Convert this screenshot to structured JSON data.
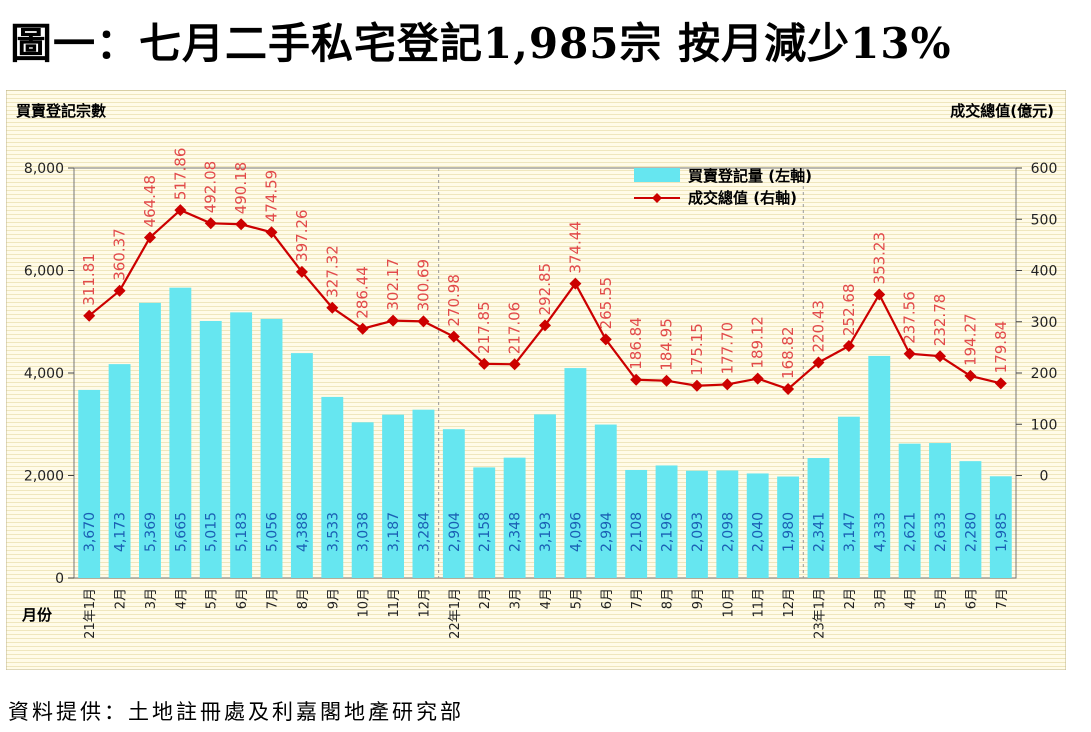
{
  "title": "圖一：七月二手私宅登記1,985宗  按月減少13%",
  "source": "資料提供：土地註冊處及利嘉閣地產研究部",
  "colors": {
    "bar": "#66e6f0",
    "line": "#cc0000",
    "bar_label": "#1a5fb4",
    "value_label": "#e24a4a",
    "grid": "#d6c79a",
    "bg": "#fffbe6"
  },
  "chart_data": {
    "type": "bar+line",
    "y_left_title": "買賣登記宗數",
    "y_right_title": "成交總值(億元)",
    "x_axis_title": "月份",
    "left_axis": {
      "range": [
        0,
        8000
      ],
      "ticks": [
        "0",
        "2,000",
        "4,000",
        "6,000",
        "8,000"
      ],
      "tick_values": [
        0,
        2000,
        4000,
        6000,
        8000
      ]
    },
    "right_axis": {
      "range": [
        -200,
        600
      ],
      "ticks": [
        "0",
        "100",
        "200",
        "300",
        "400",
        "500",
        "600"
      ],
      "tick_values": [
        0,
        100,
        200,
        300,
        400,
        500,
        600
      ]
    },
    "categories": [
      "21年1月",
      "2月",
      "3月",
      "4月",
      "5月",
      "6月",
      "7月",
      "8月",
      "9月",
      "10月",
      "11月",
      "12月",
      "22年1月",
      "2月",
      "3月",
      "4月",
      "5月",
      "6月",
      "7月",
      "8月",
      "9月",
      "10月",
      "11月",
      "12月",
      "23年1月",
      "2月",
      "3月",
      "4月",
      "5月",
      "6月",
      "7月"
    ],
    "series": [
      {
        "name": "買賣登記量 (左軸)",
        "type": "bar",
        "values": [
          3670,
          4173,
          5369,
          5665,
          5015,
          5183,
          5056,
          4388,
          3533,
          3038,
          3187,
          3284,
          2904,
          2158,
          2348,
          3193,
          4096,
          2994,
          2108,
          2196,
          2093,
          2098,
          2040,
          1980,
          2341,
          3147,
          4333,
          2621,
          2633,
          2280,
          1985
        ],
        "labels": [
          "3,670",
          "4,173",
          "5,369",
          "5,665",
          "5,015",
          "5,183",
          "5,056",
          "4,388",
          "3,533",
          "3,038",
          "3,187",
          "3,284",
          "2,904",
          "2,158",
          "2,348",
          "3,193",
          "4,096",
          "2,994",
          "2,108",
          "2,196",
          "2,093",
          "2,098",
          "2,040",
          "1,980",
          "2,341",
          "3,147",
          "4,333",
          "2,621",
          "2,633",
          "2,280",
          "1,985"
        ]
      },
      {
        "name": "成交總值 (右軸)",
        "type": "line",
        "values": [
          311.81,
          360.37,
          464.48,
          517.86,
          492.08,
          490.18,
          474.59,
          397.26,
          327.32,
          286.44,
          302.17,
          300.69,
          270.98,
          217.85,
          217.06,
          292.85,
          374.44,
          265.55,
          186.84,
          184.95,
          175.15,
          177.7,
          189.12,
          168.82,
          220.43,
          252.68,
          353.23,
          237.56,
          232.78,
          194.27,
          179.84
        ],
        "labels": [
          "311.81",
          "360.37",
          "464.48",
          "517.86",
          "492.08",
          "490.18",
          "474.59",
          "397.26",
          "327.32",
          "286.44",
          "302.17",
          "300.69",
          "270.98",
          "217.85",
          "217.06",
          "292.85",
          "374.44",
          "265.55",
          "186.84",
          "184.95",
          "175.15",
          "177.70",
          "189.12",
          "168.82",
          "220.43",
          "252.68",
          "353.23",
          "237.56",
          "232.78",
          "194.27",
          "179.84"
        ]
      }
    ]
  }
}
